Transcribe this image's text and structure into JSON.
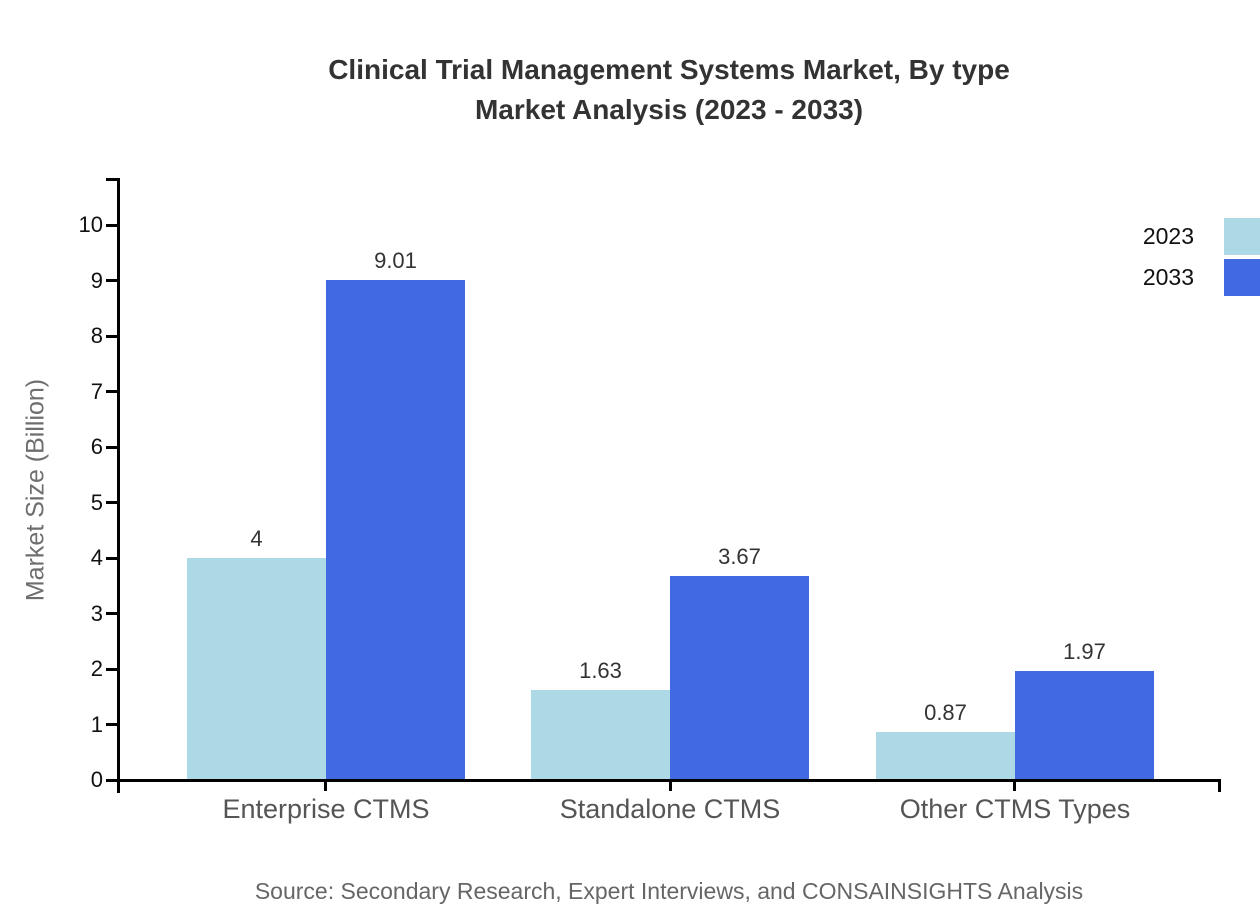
{
  "title": {
    "line1": "Clinical Trial Management Systems Market, By type",
    "line2": "Market Analysis (2023 - 2033)"
  },
  "source": "Source: Secondary Research, Expert Interviews, and CONSAINSIGHTS Analysis",
  "legend": {
    "items": [
      {
        "label": "2023",
        "color": "#ADD8E6"
      },
      {
        "label": "2033",
        "color": "#4169E1"
      }
    ]
  },
  "chart_data": {
    "type": "bar",
    "title": "Clinical Trial Management Systems Market, By type Market Analysis (2023 - 2033)",
    "categories": [
      "Enterprise CTMS",
      "Standalone CTMS",
      "Other CTMS Types"
    ],
    "series": [
      {
        "name": "2023",
        "color": "#ADD8E6",
        "values": [
          4,
          1.63,
          0.87
        ],
        "labels": [
          "4",
          "1.63",
          "0.87"
        ]
      },
      {
        "name": "2033",
        "color": "#4169E1",
        "values": [
          9.01,
          3.67,
          1.97
        ],
        "labels": [
          "9.01",
          "3.67",
          "1.97"
        ]
      }
    ],
    "xlabel": "",
    "ylabel": "Market Size (Billion)",
    "ylim": [
      0,
      10
    ],
    "yticks": [
      0,
      1,
      2,
      3,
      4,
      5,
      6,
      7,
      8,
      9,
      10
    ],
    "grid": false,
    "legend_position": "top-right",
    "axis_color": "#000000"
  }
}
